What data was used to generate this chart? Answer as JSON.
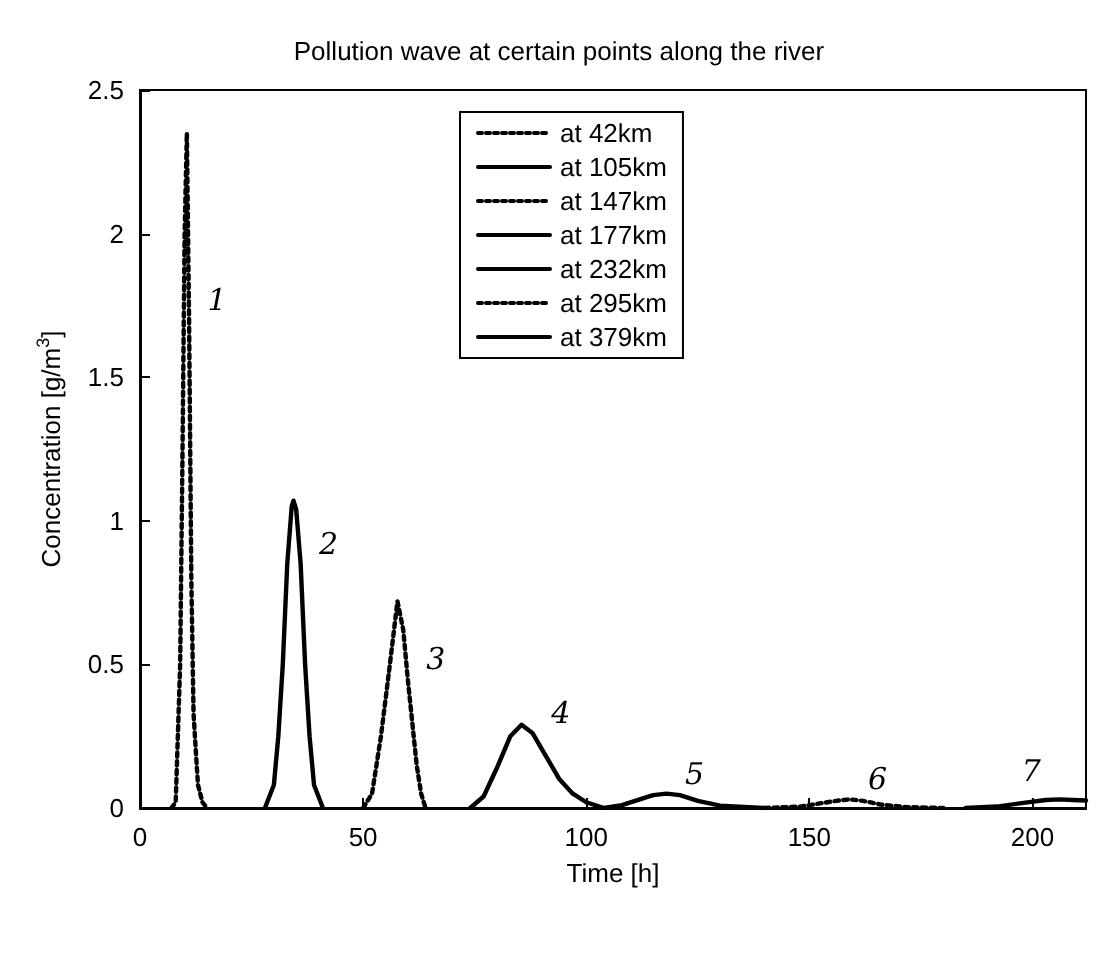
{
  "chart_data": {
    "type": "line",
    "title": "Pollution wave at certain points along the river",
    "xlabel": "Time [h]",
    "ylabel": "Concentration [g/m$^{3}$]",
    "xlim": [
      0,
      212
    ],
    "xticks": [
      0,
      50,
      100,
      150,
      200
    ],
    "ylim": [
      0,
      2.5
    ],
    "yticks": [
      0,
      0.5,
      1,
      1.5,
      2,
      2.5
    ],
    "grid": false,
    "legend": "top",
    "marker": "none",
    "series": [
      {
        "name": "at 42km",
        "color": "#000000",
        "line_style": "dotted",
        "x": [
          7,
          8,
          9,
          9.5,
          10,
          10.5,
          11,
          11.5,
          12,
          12.5,
          13,
          14,
          15
        ],
        "values": [
          0,
          0.02,
          0.5,
          1.2,
          2,
          2.35,
          1.7,
          0.8,
          0.33,
          0.2,
          0.08,
          0.02,
          0
        ]
      },
      {
        "name": "at 105km",
        "color": "#000000",
        "line_style": "solid",
        "x": [
          28,
          30,
          31,
          32,
          33,
          34,
          34.4,
          35,
          36,
          37,
          38,
          39,
          41
        ],
        "values": [
          0,
          0.08,
          0.25,
          0.5,
          0.85,
          1.05,
          1.07,
          1.04,
          0.85,
          0.5,
          0.25,
          0.08,
          0
        ]
      },
      {
        "name": "at 147km",
        "color": "#000000",
        "line_style": "dotted",
        "x": [
          50,
          52,
          54,
          56,
          57.7,
          59,
          60,
          61,
          62,
          63,
          64
        ],
        "values": [
          0,
          0.05,
          0.25,
          0.5,
          0.72,
          0.62,
          0.45,
          0.3,
          0.15,
          0.05,
          0
        ]
      },
      {
        "name": "at 177km",
        "color": "#000000",
        "line_style": "solid",
        "x": [
          74,
          77,
          80,
          83,
          85.5,
          88,
          91,
          94,
          97,
          100,
          104
        ],
        "values": [
          0,
          0.04,
          0.14,
          0.25,
          0.29,
          0.26,
          0.18,
          0.1,
          0.05,
          0.02,
          0
        ]
      },
      {
        "name": "at 232km",
        "color": "#000000",
        "line_style": "solid",
        "x": [
          104,
          108,
          112,
          115,
          118,
          121,
          125,
          130,
          140
        ],
        "values": [
          0,
          0.01,
          0.03,
          0.045,
          0.05,
          0.045,
          0.025,
          0.008,
          0
        ]
      },
      {
        "name": "at 295km",
        "color": "#000000",
        "line_style": "dotted",
        "x": [
          140,
          148,
          152,
          156,
          159,
          162,
          166,
          172,
          180
        ],
        "values": [
          0,
          0.005,
          0.015,
          0.025,
          0.03,
          0.025,
          0.012,
          0.003,
          0
        ]
      },
      {
        "name": "at 379km",
        "color": "#000000",
        "line_style": "solid",
        "x": [
          185,
          192,
          198,
          203,
          206,
          209,
          212
        ],
        "values": [
          0,
          0.005,
          0.018,
          0.028,
          0.03,
          0.028,
          0.026
        ]
      }
    ],
    "annotations": [
      {
        "text": "1",
        "x": 11,
        "y": 1.7
      },
      {
        "text": "2",
        "x": 36,
        "y": 0.85
      },
      {
        "text": "3",
        "x": 60,
        "y": 0.45
      },
      {
        "text": "4",
        "x": 88,
        "y": 0.26
      },
      {
        "text": "5",
        "x": 118,
        "y": 0.05
      },
      {
        "text": "6",
        "x": 159,
        "y": 0.03
      },
      {
        "text": "7",
        "x": 206,
        "y": 0.03
      }
    ]
  }
}
